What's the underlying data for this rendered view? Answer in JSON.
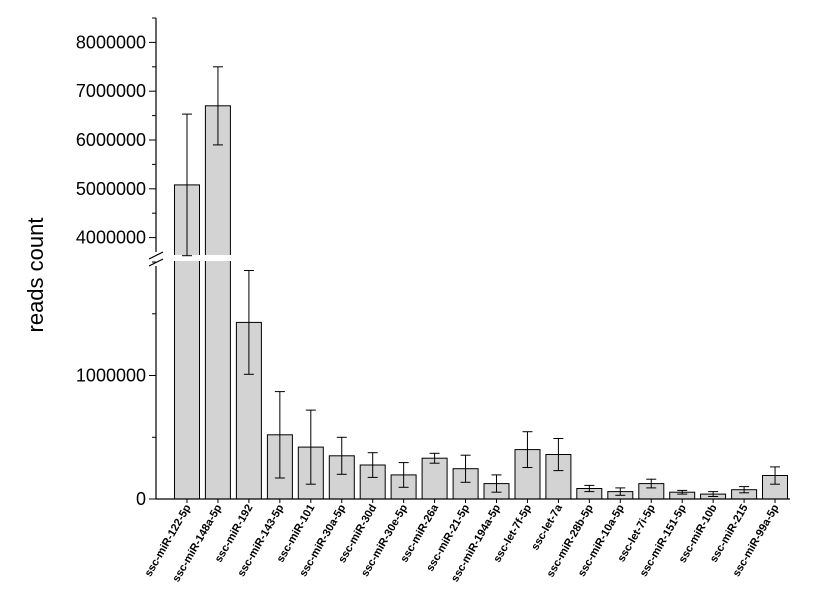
{
  "chart_data": {
    "type": "bar",
    "title": "",
    "xlabel": "",
    "ylabel": "reads count",
    "y_axis_break": true,
    "y_segments": [
      {
        "name": "lower",
        "range": [
          0,
          2000000
        ],
        "ticks": [
          0,
          1000000
        ]
      },
      {
        "name": "upper",
        "range": [
          3500000,
          8500000
        ],
        "ticks": [
          4000000,
          5000000,
          6000000,
          7000000,
          8000000
        ]
      }
    ],
    "grid": false,
    "legend": "none",
    "bar_color": "#d3d3d3",
    "edge_color": "#000000",
    "error_bars": true,
    "categories": [
      "ssc-miR-122-5p",
      "ssc-miR-148a-5p",
      "ssc-miR-192",
      "ssc-miR-143-5p",
      "ssc-miR-101",
      "ssc-miR-30a-5p",
      "ssc-miR-30d",
      "ssc-miR-30e-5p",
      "ssc-miR-26a",
      "ssc-miR-21-5p",
      "ssc-miR-194a-5p",
      "ssc-let-7f-5p",
      "ssc-let-7a",
      "ssc-miR-28b-5p",
      "ssc-miR-10a-5p",
      "ssc-let-7i-5p",
      "ssc-miR-151-5p",
      "ssc-miR-10b",
      "ssc-miR-215",
      "ssc-miR-99a-5p"
    ],
    "values": [
      5080000,
      6700000,
      1430000,
      520000,
      420000,
      350000,
      275000,
      195000,
      330000,
      245000,
      125000,
      400000,
      360000,
      85000,
      60000,
      125000,
      55000,
      40000,
      75000,
      190000
    ],
    "errors": [
      1450000,
      800000,
      420000,
      350000,
      300000,
      150000,
      100000,
      100000,
      40000,
      110000,
      70000,
      145000,
      130000,
      25000,
      30000,
      35000,
      15000,
      20000,
      25000,
      70000
    ],
    "y_tick_labels": {
      "0": "0",
      "1000000": "1000000",
      "4000000": "4000000",
      "5000000": "5000000",
      "6000000": "6000000",
      "7000000": "7000000",
      "8000000": "8000000"
    }
  }
}
